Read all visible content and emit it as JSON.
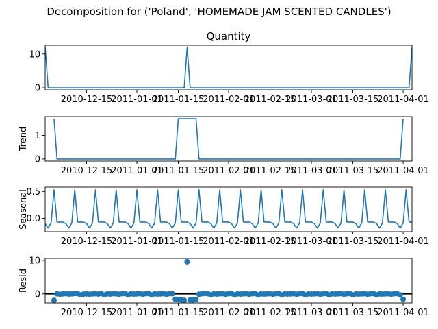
{
  "suptitle": "Decomposition for ('Poland', 'HOMEMADE JAM SCENTED CANDLES')",
  "colors": {
    "line": "#1f77b4",
    "axis": "#000000",
    "zero_line": "#000000"
  },
  "x_ticks": [
    "2010-12-15",
    "2011-01-01",
    "2011-01-15",
    "2011-02-01",
    "2011-02-15",
    "2011-03-01",
    "2011-03-15",
    "2011-04-01"
  ],
  "chart_data": [
    {
      "type": "line",
      "title": "Quantity",
      "ylabel": "",
      "x_range": [
        "2010-12-01",
        "2011-04-04"
      ],
      "ylim": [
        -0.6,
        12.6
      ],
      "y_ticks": [
        0,
        10
      ],
      "series": [
        {
          "points": [
            [
              "2010-12-01",
              12
            ],
            [
              "2010-12-02",
              0
            ],
            [
              "2011-01-17",
              0
            ],
            [
              "2011-01-18",
              12
            ],
            [
              "2011-01-19",
              0
            ],
            [
              "2011-04-03",
              0
            ],
            [
              "2011-04-04",
              12
            ]
          ]
        }
      ]
    },
    {
      "type": "line",
      "title": "",
      "ylabel": "Trend",
      "x_range": [
        "2010-12-01",
        "2011-04-04"
      ],
      "ylim": [
        -0.09,
        1.8
      ],
      "y_ticks": [
        0,
        1
      ],
      "series": [
        {
          "points": [
            [
              "2010-12-04",
              1.71
            ],
            [
              "2010-12-05",
              0
            ],
            [
              "2011-01-14",
              0
            ],
            [
              "2011-01-15",
              1.71
            ],
            [
              "2011-01-21",
              1.71
            ],
            [
              "2011-01-22",
              0
            ],
            [
              "2011-03-31",
              0
            ],
            [
              "2011-04-01",
              1.71
            ]
          ]
        }
      ]
    },
    {
      "type": "line",
      "title": "",
      "ylabel": "Seasonal",
      "x_range": [
        "2010-12-01",
        "2011-04-04"
      ],
      "ylim": [
        -0.25,
        0.58
      ],
      "y_ticks": [
        0.0,
        0.5
      ],
      "seasonal_pattern": [
        -0.1,
        -0.18,
        -0.09,
        0.53,
        -0.07,
        -0.07,
        -0.07
      ],
      "series": [
        {
          "start": "2010-12-01",
          "end": "2011-04-04"
        }
      ]
    },
    {
      "type": "scatter",
      "title": "",
      "ylabel": "Resid",
      "x_range": [
        "2010-12-01",
        "2011-04-04"
      ],
      "ylim": [
        -2.7,
        10.6
      ],
      "y_ticks": [
        0,
        10
      ],
      "zero_line": true,
      "series": [
        {
          "points": [
            [
              "2010-12-04",
              -1.9
            ],
            [
              "2010-12-05",
              0.0
            ],
            [
              "2010-12-06",
              -0.1
            ],
            [
              "2010-12-07",
              0.0
            ],
            [
              "2010-12-08",
              0.05
            ],
            [
              "2010-12-09",
              -0.05
            ],
            [
              "2010-12-10",
              0.0
            ],
            [
              "2010-12-11",
              0.1
            ],
            [
              "2010-12-12",
              0.05
            ],
            [
              "2010-12-13",
              -0.3
            ],
            [
              "2010-12-14",
              -0.05
            ],
            [
              "2010-12-15",
              0.0
            ],
            [
              "2010-12-16",
              -0.1
            ],
            [
              "2010-12-17",
              0.0
            ],
            [
              "2010-12-18",
              0.05
            ],
            [
              "2010-12-19",
              -0.05
            ],
            [
              "2010-12-20",
              0.1
            ],
            [
              "2010-12-21",
              -0.3
            ],
            [
              "2010-12-22",
              0.0
            ],
            [
              "2010-12-23",
              -0.05
            ],
            [
              "2010-12-24",
              0.05
            ],
            [
              "2010-12-25",
              0.0
            ],
            [
              "2010-12-26",
              -0.1
            ],
            [
              "2010-12-27",
              0.05
            ],
            [
              "2010-12-28",
              0.1
            ],
            [
              "2010-12-29",
              -0.3
            ],
            [
              "2010-12-30",
              0.0
            ],
            [
              "2010-12-31",
              -0.05
            ],
            [
              "2011-01-01",
              0.0
            ],
            [
              "2011-01-02",
              0.05
            ],
            [
              "2011-01-03",
              -0.1
            ],
            [
              "2011-01-04",
              0.05
            ],
            [
              "2011-01-05",
              0.1
            ],
            [
              "2011-01-06",
              -0.3
            ],
            [
              "2011-01-07",
              0.0
            ],
            [
              "2011-01-08",
              -0.05
            ],
            [
              "2011-01-09",
              0.0
            ],
            [
              "2011-01-10",
              0.05
            ],
            [
              "2011-01-11",
              -0.1
            ],
            [
              "2011-01-12",
              0.05
            ],
            [
              "2011-01-13",
              0.05
            ],
            [
              "2011-01-14",
              -1.6
            ],
            [
              "2011-01-15",
              -1.7
            ],
            [
              "2011-01-16",
              -1.8
            ],
            [
              "2011-01-17",
              -1.9
            ],
            [
              "2011-01-18",
              9.6
            ],
            [
              "2011-01-19",
              -1.8
            ],
            [
              "2011-01-20",
              -1.8
            ],
            [
              "2011-01-21",
              -1.7
            ],
            [
              "2011-01-22",
              -0.1
            ],
            [
              "2011-01-23",
              0.05
            ],
            [
              "2011-01-24",
              0.1
            ],
            [
              "2011-01-25",
              0.05
            ],
            [
              "2011-01-26",
              -0.3
            ],
            [
              "2011-01-27",
              0.0
            ],
            [
              "2011-01-28",
              -0.05
            ],
            [
              "2011-01-29",
              0.0
            ],
            [
              "2011-01-30",
              0.05
            ],
            [
              "2011-01-31",
              -0.1
            ],
            [
              "2011-02-01",
              0.05
            ],
            [
              "2011-02-02",
              0.1
            ],
            [
              "2011-02-03",
              -0.3
            ],
            [
              "2011-02-04",
              0.0
            ],
            [
              "2011-02-05",
              -0.05
            ],
            [
              "2011-02-06",
              0.0
            ],
            [
              "2011-02-07",
              0.05
            ],
            [
              "2011-02-08",
              -0.1
            ],
            [
              "2011-02-09",
              0.05
            ],
            [
              "2011-02-10",
              0.1
            ],
            [
              "2011-02-11",
              -0.3
            ],
            [
              "2011-02-12",
              0.0
            ],
            [
              "2011-02-13",
              -0.05
            ],
            [
              "2011-02-14",
              0.0
            ],
            [
              "2011-02-15",
              0.05
            ],
            [
              "2011-02-16",
              -0.1
            ],
            [
              "2011-02-17",
              0.05
            ],
            [
              "2011-02-18",
              0.1
            ],
            [
              "2011-02-19",
              -0.3
            ],
            [
              "2011-02-20",
              0.0
            ],
            [
              "2011-02-21",
              -0.05
            ],
            [
              "2011-02-22",
              0.0
            ],
            [
              "2011-02-23",
              0.05
            ],
            [
              "2011-02-24",
              -0.1
            ],
            [
              "2011-02-25",
              0.05
            ],
            [
              "2011-02-26",
              0.1
            ],
            [
              "2011-02-27",
              -0.3
            ],
            [
              "2011-02-28",
              0.0
            ],
            [
              "2011-03-01",
              -0.05
            ],
            [
              "2011-03-02",
              0.0
            ],
            [
              "2011-03-03",
              0.05
            ],
            [
              "2011-03-04",
              -0.1
            ],
            [
              "2011-03-05",
              0.05
            ],
            [
              "2011-03-06",
              0.1
            ],
            [
              "2011-03-07",
              -0.3
            ],
            [
              "2011-03-08",
              0.0
            ],
            [
              "2011-03-09",
              -0.05
            ],
            [
              "2011-03-10",
              0.0
            ],
            [
              "2011-03-11",
              0.05
            ],
            [
              "2011-03-12",
              -0.1
            ],
            [
              "2011-03-13",
              0.05
            ],
            [
              "2011-03-14",
              0.1
            ],
            [
              "2011-03-15",
              -0.3
            ],
            [
              "2011-03-16",
              0.0
            ],
            [
              "2011-03-17",
              -0.05
            ],
            [
              "2011-03-18",
              0.0
            ],
            [
              "2011-03-19",
              0.05
            ],
            [
              "2011-03-20",
              -0.1
            ],
            [
              "2011-03-21",
              0.05
            ],
            [
              "2011-03-22",
              0.1
            ],
            [
              "2011-03-23",
              -0.3
            ],
            [
              "2011-03-24",
              0.0
            ],
            [
              "2011-03-25",
              -0.05
            ],
            [
              "2011-03-26",
              0.0
            ],
            [
              "2011-03-27",
              0.05
            ],
            [
              "2011-03-28",
              -0.1
            ],
            [
              "2011-03-29",
              0.05
            ],
            [
              "2011-03-30",
              0.1
            ],
            [
              "2011-03-31",
              -0.3
            ],
            [
              "2011-04-01",
              -1.6
            ]
          ]
        }
      ]
    }
  ]
}
